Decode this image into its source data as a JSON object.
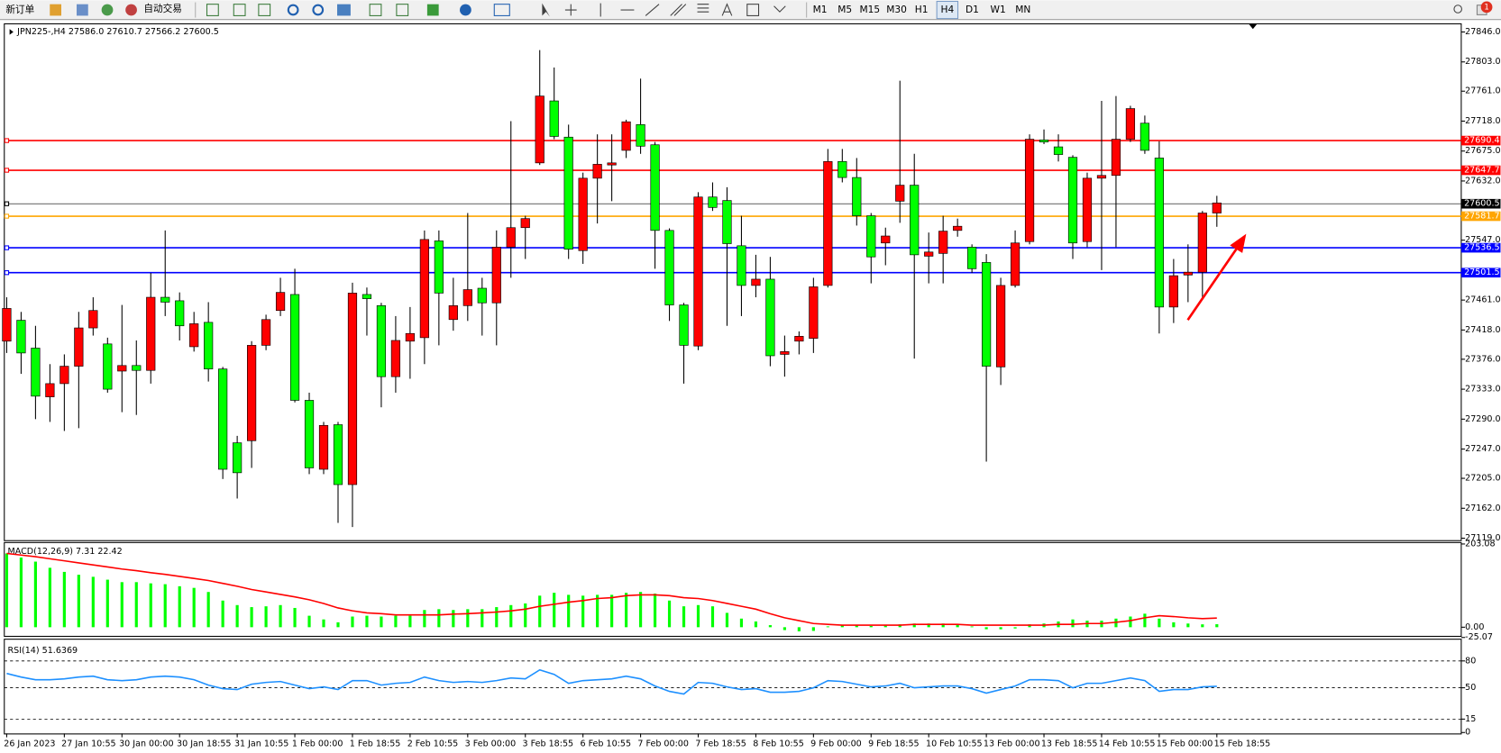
{
  "toolbar": {
    "new_order": "新订单",
    "auto_trading": "自动交易",
    "timeframes": [
      "M1",
      "M5",
      "M15",
      "M30",
      "H1",
      "H4",
      "D1",
      "W1",
      "MN"
    ],
    "badge": "1"
  },
  "chart_data": [
    {
      "type": "candlestick",
      "title": "JPN225-,H4  27586.0 27610.7 27566.2 27600.5",
      "categories": [
        "26 Jan 2023",
        null,
        null,
        null,
        "27 Jan 10:55",
        null,
        null,
        null,
        "30 Jan 00:00",
        null,
        null,
        null,
        "30 Jan 18:55",
        null,
        null,
        null,
        "31 Jan 10:55",
        null,
        null,
        null,
        "1 Feb 00:00",
        null,
        null,
        null,
        "1 Feb 18:55",
        null,
        null,
        null,
        "2 Feb 10:55",
        null,
        null,
        null,
        "3 Feb 00:00",
        null,
        null,
        null,
        "3 Feb 18:55",
        null,
        null,
        null,
        "6 Feb 10:55",
        null,
        null,
        null,
        "7 Feb 00:00",
        null,
        null,
        null,
        "7 Feb 18:55",
        null,
        null,
        null,
        "8 Feb 10:55",
        null,
        null,
        null,
        "9 Feb 00:00",
        null,
        null,
        null,
        "9 Feb 18:55",
        null,
        null,
        null,
        "10 Feb 10:55",
        null,
        null,
        null,
        "13 Feb 00:00",
        null,
        null,
        null,
        "13 Feb 18:55",
        null,
        null,
        null,
        "14 Feb 10:55",
        null,
        null,
        null,
        "15 Feb 00:00",
        null,
        null,
        null,
        "15 Feb 18:55"
      ],
      "open": [
        27402,
        27432,
        27392,
        27322,
        27341,
        27366,
        27421,
        27398,
        27359,
        27367,
        27360,
        27465,
        27460,
        27394,
        27429,
        27362,
        27256,
        27259,
        27396,
        27446,
        27469,
        27317,
        27218,
        27282,
        27196,
        27469,
        27453,
        27351,
        27402,
        27407,
        27546,
        27433,
        27453,
        27478,
        27457,
        27537,
        27565,
        27658,
        27747,
        27695,
        27532,
        27636,
        27655,
        27676,
        27713,
        27684,
        27561,
        27454,
        27395,
        27609,
        27604,
        27539,
        27482,
        27491,
        27383,
        27402,
        27406,
        27482,
        27660,
        27637,
        27582,
        27543,
        27603,
        27626,
        27524,
        27528,
        27561,
        27537,
        27515,
        27365,
        27482,
        27545,
        27691,
        27681,
        27666,
        27545,
        27636,
        27640,
        27692,
        27715,
        27665,
        27451,
        27497,
        27501,
        27586
      ],
      "high": [
        27465,
        27444,
        27424,
        27369,
        27383,
        27444,
        27465,
        27407,
        27454,
        27403,
        27500,
        27561,
        27472,
        27444,
        27458,
        27365,
        27266,
        27402,
        27440,
        27493,
        27506,
        27328,
        27286,
        27286,
        27486,
        27479,
        27457,
        27438,
        27451,
        27561,
        27561,
        27493,
        27586,
        27493,
        27561,
        27718,
        27582,
        27820,
        27795,
        27713,
        27644,
        27699,
        27699,
        27720,
        27779,
        27688,
        27564,
        27457,
        27616,
        27630,
        27623,
        27582,
        27526,
        27523,
        27410,
        27416,
        27493,
        27678,
        27678,
        27665,
        27586,
        27565,
        27776,
        27671,
        27558,
        27582,
        27578,
        27541,
        27527,
        27493,
        27561,
        27699,
        27706,
        27699,
        27669,
        27644,
        27747,
        27754,
        27740,
        27726,
        27689,
        27520,
        27541,
        27589,
        27610.7
      ],
      "low": [
        27385,
        27355,
        27290,
        27286,
        27273,
        27277,
        27410,
        27328,
        27300,
        27296,
        27341,
        27438,
        27403,
        27387,
        27344,
        27204,
        27176,
        27220,
        27389,
        27438,
        27314,
        27211,
        27211,
        27141,
        27135,
        27410,
        27307,
        27328,
        27348,
        27369,
        27396,
        27417,
        27431,
        27410,
        27396,
        27493,
        27520,
        27655,
        27692,
        27520,
        27513,
        27571,
        27603,
        27665,
        27671,
        27506,
        27431,
        27341,
        27389,
        27589,
        27424,
        27438,
        27465,
        27366,
        27351,
        27383,
        27385,
        27479,
        27630,
        27568,
        27485,
        27511,
        27572,
        27377,
        27485,
        27485,
        27552,
        27500,
        27229,
        27339,
        27479,
        27541,
        27685,
        27660,
        27520,
        27537,
        27504,
        27537,
        27688,
        27671,
        27413,
        27428,
        27458,
        27463,
        27566.2
      ],
      "close": [
        27449,
        27385,
        27323,
        27341,
        27366,
        27421,
        27446,
        27333,
        27367,
        27360,
        27465,
        27458,
        27424,
        27427,
        27362,
        27218,
        27213,
        27396,
        27433,
        27472,
        27317,
        27220,
        27281,
        27196,
        27471,
        27463,
        27351,
        27403,
        27413,
        27548,
        27471,
        27453,
        27476,
        27457,
        27537,
        27565,
        27578,
        27754,
        27696,
        27534,
        27636,
        27656,
        27658,
        27717,
        27682,
        27561,
        27454,
        27396,
        27609,
        27594,
        27542,
        27482,
        27491,
        27381,
        27387,
        27409,
        27480,
        27660,
        27637,
        27582,
        27523,
        27553,
        27626,
        27526,
        27530,
        27560,
        27567,
        27506,
        27366,
        27482,
        27543,
        27692,
        27688,
        27670,
        27543,
        27636,
        27640,
        27692,
        27736,
        27676,
        27451,
        27496,
        27501,
        27586,
        27600.5
      ],
      "up_color": "#ff0000",
      "down_color": "#00ff00",
      "ylim": [
        27116.2,
        27858.4
      ],
      "yticks": [
        {
          "value": 27846,
          "label": "27846.0"
        },
        {
          "value": 27803,
          "label": "27803.0"
        },
        {
          "value": 27761,
          "label": "27761.0"
        },
        {
          "value": 27718,
          "label": "27718.0"
        },
        {
          "value": 27675,
          "label": "27675.0"
        },
        {
          "value": 27632,
          "label": "27632.0"
        },
        {
          "value": 27547,
          "label": "27547.0"
        },
        {
          "value": 27461,
          "label": "27461.0"
        },
        {
          "value": 27418,
          "label": "27418.0"
        },
        {
          "value": 27376,
          "label": "27376.0"
        },
        {
          "value": 27333,
          "label": "27333.0"
        },
        {
          "value": 27290,
          "label": "27290.0"
        },
        {
          "value": 27247,
          "label": "27247.0"
        },
        {
          "value": 27205,
          "label": "27205.0"
        },
        {
          "value": 27162,
          "label": "27162.0"
        },
        {
          "value": 27119,
          "label": "27119.0"
        }
      ],
      "hlines": [
        {
          "value": 27690.4,
          "color": "#ff0000"
        },
        {
          "value": 27647.7,
          "color": "#ff0000"
        },
        {
          "value": 27600.5,
          "color": "#000000"
        },
        {
          "value": 27581.7,
          "color": "#ffa500"
        },
        {
          "value": 27536.5,
          "color": "#0000ff"
        },
        {
          "value": 27501.5,
          "color": "#0000ff"
        }
      ]
    },
    {
      "type": "macd",
      "title": "MACD(12,26,9) 7.31 22.42",
      "series": [
        {
          "color": "#00ff00",
          "values": [
            180,
            170,
            160,
            145,
            135,
            128,
            123,
            116,
            110,
            110,
            107,
            105,
            100,
            96,
            86,
            65,
            54,
            49,
            51,
            54,
            47,
            28,
            19,
            12,
            26,
            28,
            26,
            28,
            28,
            42,
            44,
            42,
            44,
            44,
            49,
            54,
            58,
            77,
            84,
            79,
            77,
            79,
            79,
            84,
            86,
            82,
            65,
            51,
            54,
            51,
            35,
            21,
            14,
            5,
            -7,
            -10,
            -9,
            2,
            5,
            5,
            3,
            5,
            7,
            9,
            9,
            9,
            7,
            2,
            -5,
            -5,
            -3,
            7,
            9,
            14,
            19,
            16,
            16,
            21,
            26,
            33,
            21,
            12,
            9,
            7,
            7.31
          ]
        },
        {
          "color": "#ff0000",
          "values": [
            180,
            176,
            172,
            167,
            162,
            157,
            152,
            147,
            142,
            138,
            133,
            129,
            124,
            119,
            114,
            107,
            100,
            92,
            86,
            80,
            74,
            67,
            58,
            47,
            40,
            35,
            33,
            30,
            30,
            30,
            30,
            32,
            33,
            35,
            37,
            40,
            44,
            51,
            56,
            61,
            65,
            70,
            72,
            77,
            79,
            79,
            77,
            72,
            70,
            65,
            58,
            51,
            44,
            33,
            23,
            16,
            9,
            7,
            5,
            5,
            5,
            5,
            5,
            7,
            7,
            7,
            7,
            5,
            5,
            5,
            5,
            5,
            5,
            7,
            7,
            9,
            9,
            12,
            16,
            23,
            28,
            26,
            23,
            21,
            22.42
          ]
        }
      ],
      "ylim": [
        -25.07,
        203.08
      ],
      "yticks": [
        203.08,
        {
          "value": 0,
          "label": "0.00"
        },
        -25.07
      ]
    },
    {
      "type": "rsi",
      "title": "RSI(14) 51.6369",
      "series": [
        {
          "color": "#1e90ff",
          "values": [
            66,
            62,
            59,
            59,
            60,
            62,
            63,
            59,
            58,
            59,
            62,
            63,
            62,
            59,
            53,
            49,
            48,
            54,
            56,
            57,
            53,
            49,
            51,
            48,
            58,
            58,
            53,
            55,
            56,
            62,
            58,
            56,
            57,
            56,
            58,
            61,
            60,
            70,
            65,
            55,
            58,
            59,
            60,
            63,
            60,
            52,
            46,
            43,
            56,
            55,
            51,
            48,
            49,
            45,
            45,
            46,
            50,
            58,
            57,
            54,
            51,
            52,
            55,
            50,
            51,
            52,
            52,
            49,
            44,
            48,
            52,
            59,
            59,
            58,
            50,
            55,
            55,
            58,
            61,
            58,
            46,
            48,
            48,
            51,
            51.6369
          ]
        }
      ],
      "ylim": [
        0,
        100
      ],
      "yticks": [
        80,
        50,
        15,
        0
      ],
      "levels": [
        80,
        50,
        15
      ]
    }
  ]
}
